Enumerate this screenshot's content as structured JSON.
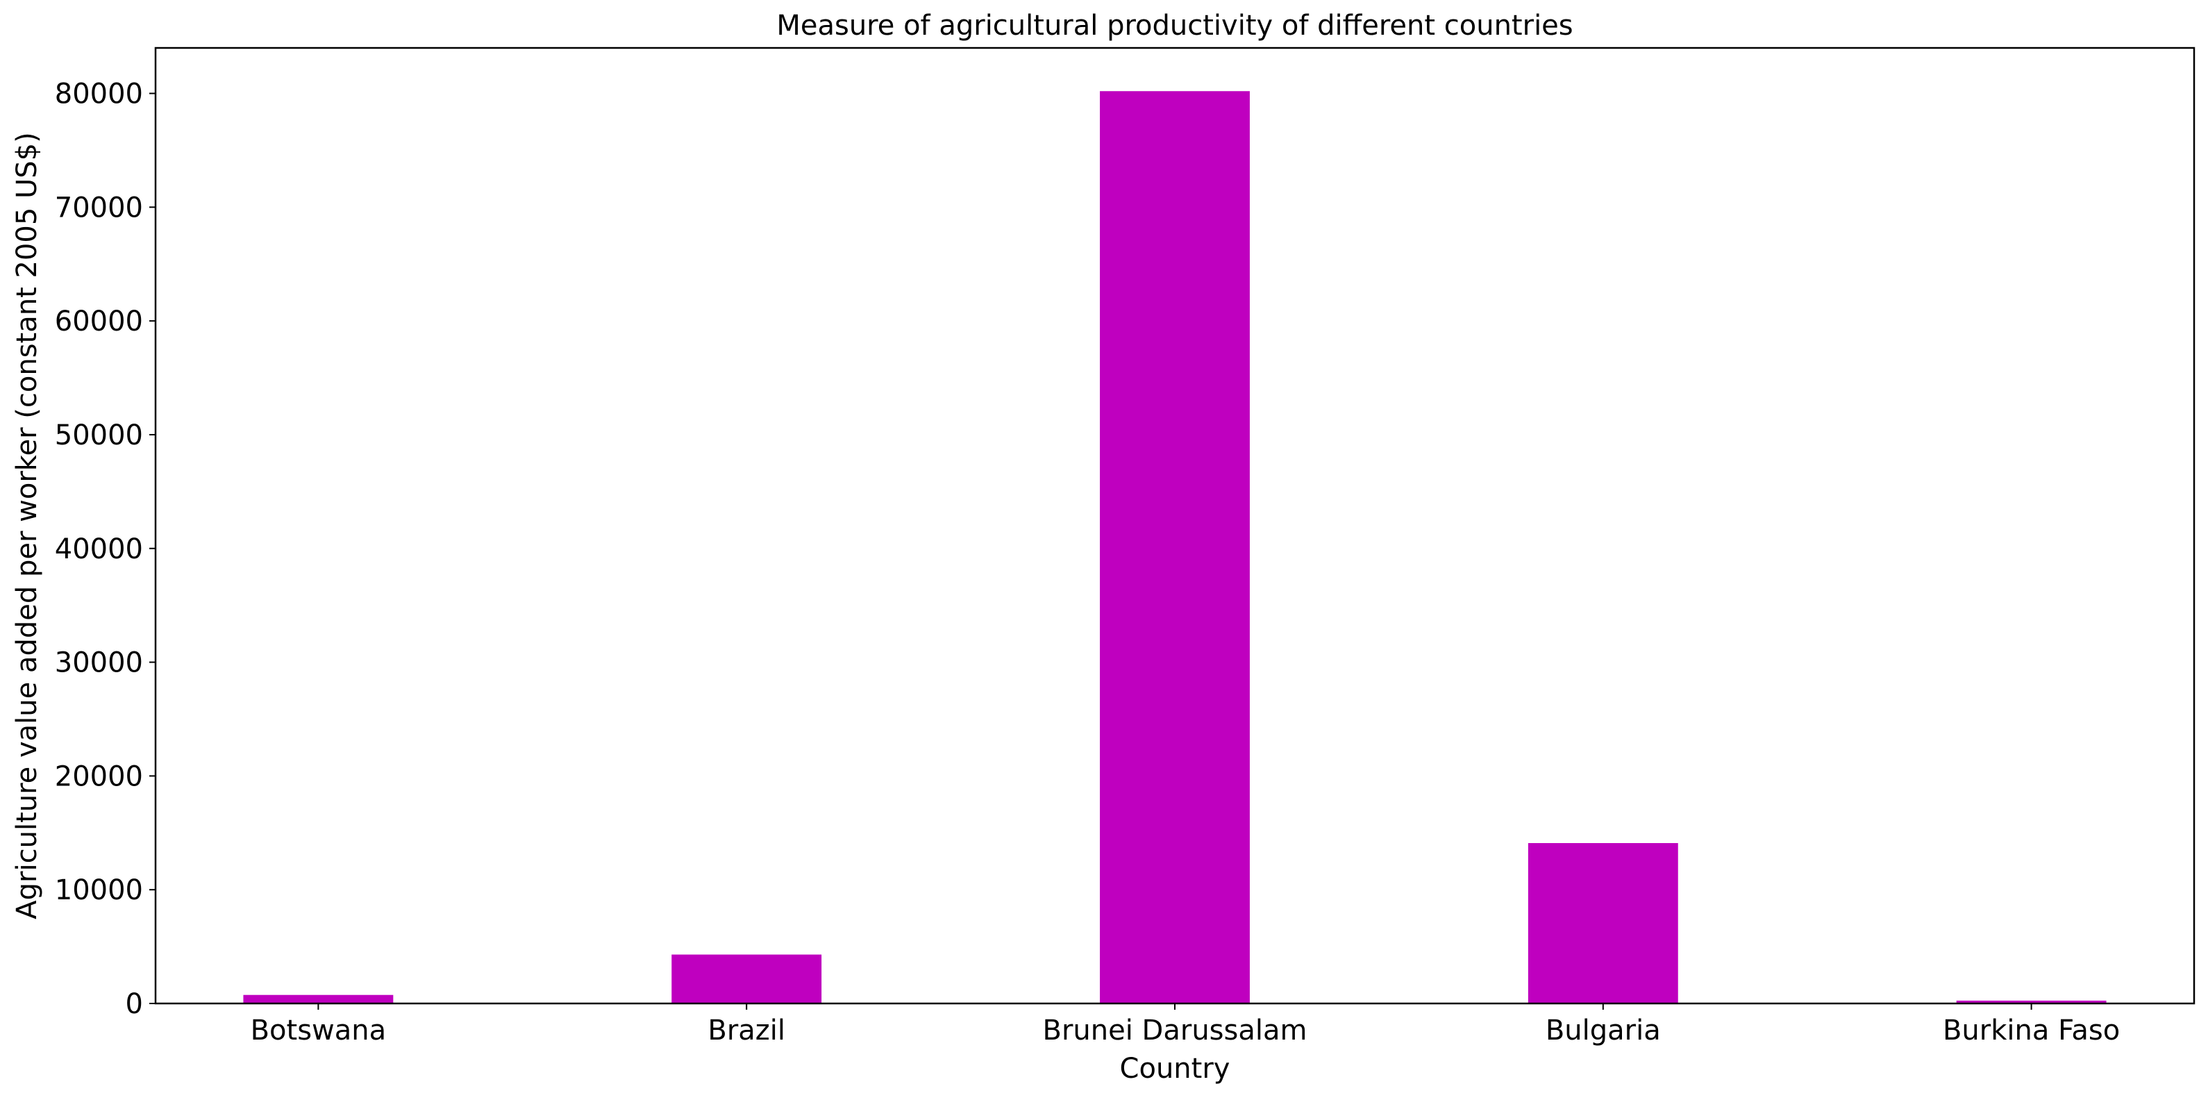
{
  "chart_data": {
    "type": "bar",
    "title": "Measure of agricultural productivity of different countries",
    "xlabel": "Country",
    "ylabel": "Agriculture value added per worker (constant 2005 US$)",
    "categories": [
      "Botswana",
      "Brazil",
      "Brunei Darussalam",
      "Bulgaria",
      "Burkina Faso"
    ],
    "values": [
      750,
      4300,
      80200,
      14100,
      250
    ],
    "ylim": [
      0,
      84000
    ],
    "yticks": [
      0,
      10000,
      20000,
      30000,
      40000,
      50000,
      60000,
      70000,
      80000
    ],
    "ytick_labels": [
      "0",
      "10000",
      "20000",
      "30000",
      "40000",
      "50000",
      "60000",
      "70000",
      "80000"
    ],
    "bar_color": "#bf00bf",
    "grid": false,
    "legend": false
  }
}
